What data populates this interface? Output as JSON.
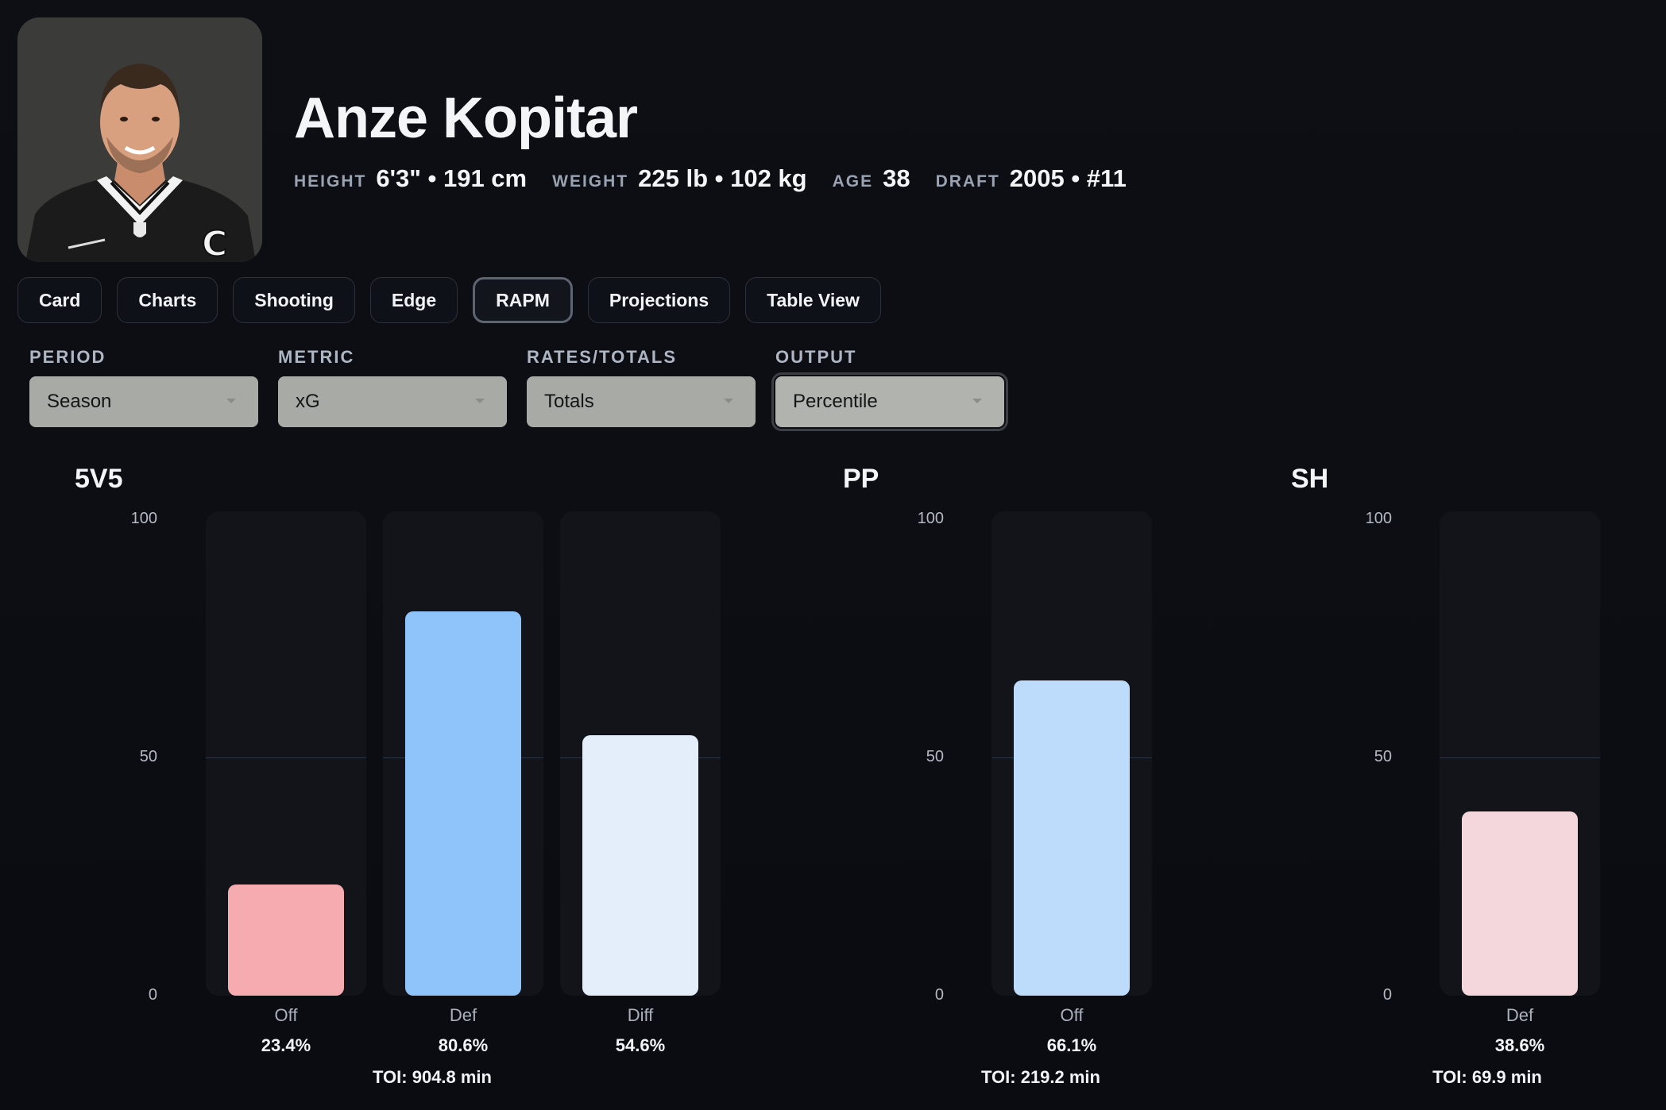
{
  "player": {
    "name": "Anze Kopitar",
    "bio": [
      {
        "label": "HEIGHT",
        "value": "6'3\" • 191 cm"
      },
      {
        "label": "WEIGHT",
        "value": "225 lb • 102 kg"
      },
      {
        "label": "AGE",
        "value": "38"
      },
      {
        "label": "DRAFT",
        "value": "2005 • #11"
      }
    ]
  },
  "tabs": [
    {
      "label": "Card",
      "active": false
    },
    {
      "label": "Charts",
      "active": false
    },
    {
      "label": "Shooting",
      "active": false
    },
    {
      "label": "Edge",
      "active": false
    },
    {
      "label": "RAPM",
      "active": true
    },
    {
      "label": "Projections",
      "active": false
    },
    {
      "label": "Table View",
      "active": false
    }
  ],
  "filters": [
    {
      "label": "PERIOD",
      "value": "Season"
    },
    {
      "label": "METRIC",
      "value": "xG"
    },
    {
      "label": "RATES/TOTALS",
      "value": "Totals"
    },
    {
      "label": "OUTPUT",
      "value": "Percentile"
    }
  ],
  "colors": {
    "off_5v5": "#f6abb0",
    "def_5v5": "#8fc4fb",
    "diff_5v5": "#e3eefa",
    "off_pp": "#bddbfa",
    "def_sh": "#f4d7dc"
  },
  "chart_data": [
    {
      "type": "bar",
      "title": "5V5",
      "categories": [
        "Off",
        "Def",
        "Diff"
      ],
      "values": [
        23.4,
        80.6,
        54.6
      ],
      "value_labels": [
        "23.4%",
        "80.6%",
        "54.6%"
      ],
      "yticks": [
        "100",
        "50",
        "0"
      ],
      "ylim": [
        0,
        100
      ],
      "toi": "TOI: 904.8 min"
    },
    {
      "type": "bar",
      "title": "PP",
      "categories": [
        "Off"
      ],
      "values": [
        66.1
      ],
      "value_labels": [
        "66.1%"
      ],
      "yticks": [
        "100",
        "50",
        "0"
      ],
      "ylim": [
        0,
        100
      ],
      "toi": "TOI: 219.2 min"
    },
    {
      "type": "bar",
      "title": "SH",
      "categories": [
        "Def"
      ],
      "values": [
        38.6
      ],
      "value_labels": [
        "38.6%"
      ],
      "yticks": [
        "100",
        "50",
        "0"
      ],
      "ylim": [
        0,
        100
      ],
      "toi": "TOI: 69.9 min"
    }
  ]
}
